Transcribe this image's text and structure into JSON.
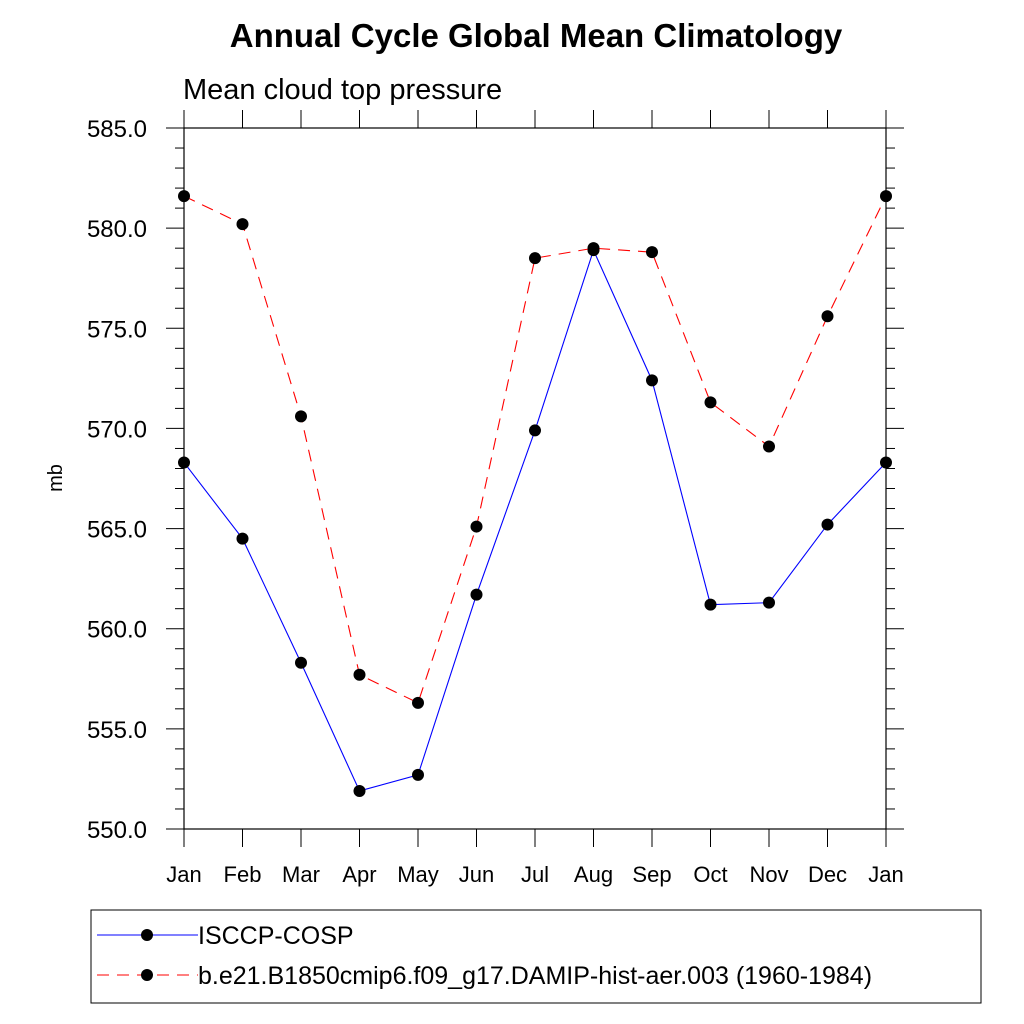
{
  "chart_data": {
    "type": "line",
    "title": "Annual Cycle Global Mean Climatology",
    "subtitle": "Mean cloud top pressure",
    "xlabel": "",
    "ylabel": "mb",
    "categories": [
      "Jan",
      "Feb",
      "Mar",
      "Apr",
      "May",
      "Jun",
      "Jul",
      "Aug",
      "Sep",
      "Oct",
      "Nov",
      "Dec",
      "Jan"
    ],
    "ylim": [
      550.0,
      585.0
    ],
    "yticks": [
      "550.0",
      "555.0",
      "560.0",
      "565.0",
      "570.0",
      "575.0",
      "580.0",
      "585.0"
    ],
    "ytick_values": [
      550,
      555,
      560,
      565,
      570,
      575,
      580,
      585
    ],
    "grid": false,
    "legend_position": "bottom",
    "series": [
      {
        "name": "ISCCP-COSP",
        "color": "#0000ff",
        "line_style": "solid",
        "marker": "filled-circle",
        "values": [
          568.3,
          564.5,
          558.3,
          551.9,
          552.7,
          561.7,
          569.9,
          578.9,
          572.4,
          561.2,
          561.3,
          565.2,
          568.3
        ]
      },
      {
        "name": "b.e21.B1850cmip6.f09_g17.DAMIP-hist-aer.003 (1960-1984)",
        "color": "#ff0000",
        "line_style": "dashed",
        "marker": "filled-circle",
        "values": [
          581.6,
          580.2,
          570.6,
          557.7,
          556.3,
          565.1,
          578.5,
          579.0,
          578.8,
          571.3,
          569.1,
          575.6,
          581.6
        ]
      }
    ]
  }
}
